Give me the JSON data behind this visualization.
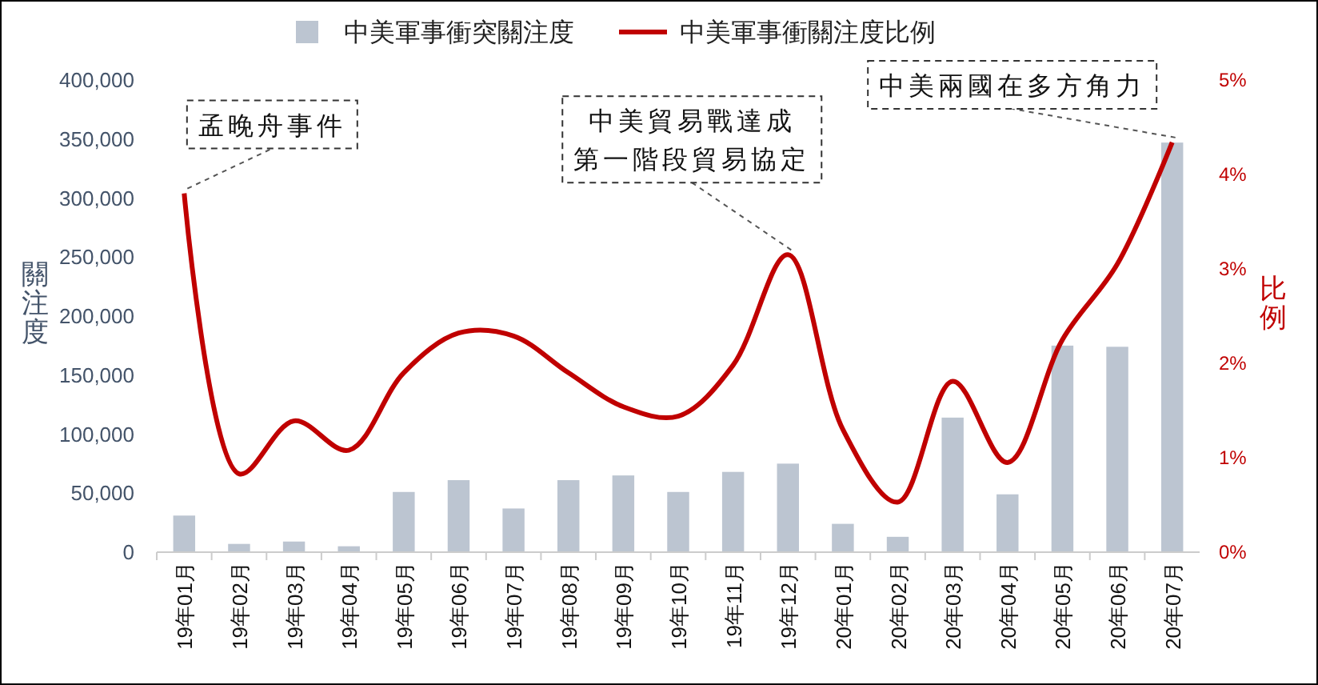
{
  "chart_data": {
    "type": "bar",
    "categories": [
      "19年01月",
      "19年02月",
      "19年03月",
      "19年04月",
      "19年05月",
      "19年06月",
      "19年07月",
      "19年08月",
      "19年09月",
      "19年10月",
      "19年11月",
      "19年12月",
      "20年01月",
      "20年02月",
      "20年03月",
      "20年04月",
      "20年05月",
      "20年06月",
      "20年07月"
    ],
    "series": [
      {
        "name": "中美軍事衝突關注度",
        "color": "#bcc5d1",
        "values": [
          31000,
          7000,
          9000,
          5000,
          51000,
          61000,
          37000,
          61000,
          65000,
          51000,
          68000,
          75000,
          24000,
          13000,
          114000,
          49000,
          175000,
          174000,
          347000
        ]
      },
      {
        "name": "中美軍事衝關注度比例",
        "type": "line",
        "axis": "y2",
        "color": "#c00000",
        "values": [
          3.8,
          0.83,
          1.39,
          1.08,
          1.9,
          2.32,
          2.29,
          1.9,
          1.54,
          1.44,
          1.98,
          3.15,
          1.3,
          0.53,
          1.81,
          0.95,
          2.25,
          3.05,
          4.34
        ]
      }
    ],
    "ylabel": "關注度",
    "y2label": "比例",
    "ylim": [
      0,
      400000
    ],
    "yticks": [
      {
        "value": 0,
        "label": "0"
      },
      {
        "value": 50000,
        "label": "50,000"
      },
      {
        "value": 100000,
        "label": "100,000"
      },
      {
        "value": 150000,
        "label": "150,000"
      },
      {
        "value": 200000,
        "label": "200,000"
      },
      {
        "value": 250000,
        "label": "250,000"
      },
      {
        "value": 300000,
        "label": "300,000"
      },
      {
        "value": 350000,
        "label": "350,000"
      },
      {
        "value": 400000,
        "label": "400,000"
      }
    ],
    "y2lim": [
      0,
      5
    ],
    "y2ticks": [
      {
        "value": 0,
        "label": "0%"
      },
      {
        "value": 1,
        "label": "1%"
      },
      {
        "value": 2,
        "label": "2%"
      },
      {
        "value": 3,
        "label": "3%"
      },
      {
        "value": 4,
        "label": "4%"
      },
      {
        "value": 5,
        "label": "5%"
      }
    ],
    "annotations": [
      {
        "text": "孟晚舟事件",
        "x": "19年01月"
      },
      {
        "text": "中美貿易戰達成第一階段貿易協定",
        "x": "19年12月"
      },
      {
        "text": "中美兩國在多方角力",
        "x": "20年07月"
      }
    ],
    "legend": "top",
    "grid": false,
    "marker": "none",
    "line_style": "solid"
  }
}
